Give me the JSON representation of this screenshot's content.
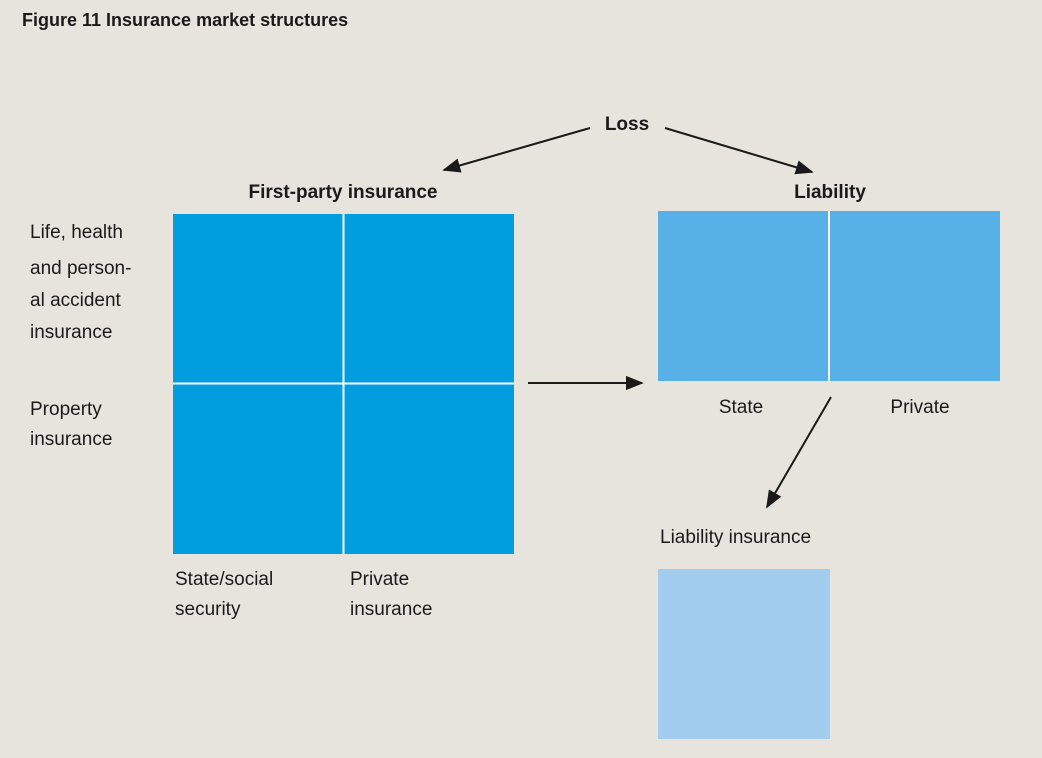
{
  "title": "Figure 11  Insurance market structures",
  "root": "Loss",
  "first_party": {
    "heading": "First-party insurance",
    "rows": [
      [
        "Life, health",
        "and person-",
        "al accident",
        "insurance"
      ],
      [
        "Property",
        "insurance"
      ]
    ],
    "columns": [
      [
        "State/social",
        "security"
      ],
      [
        "Private",
        "insurance"
      ]
    ]
  },
  "liability": {
    "heading": "Liability",
    "columns": [
      "State",
      "Private"
    ],
    "insurance": "Liability insurance"
  }
}
